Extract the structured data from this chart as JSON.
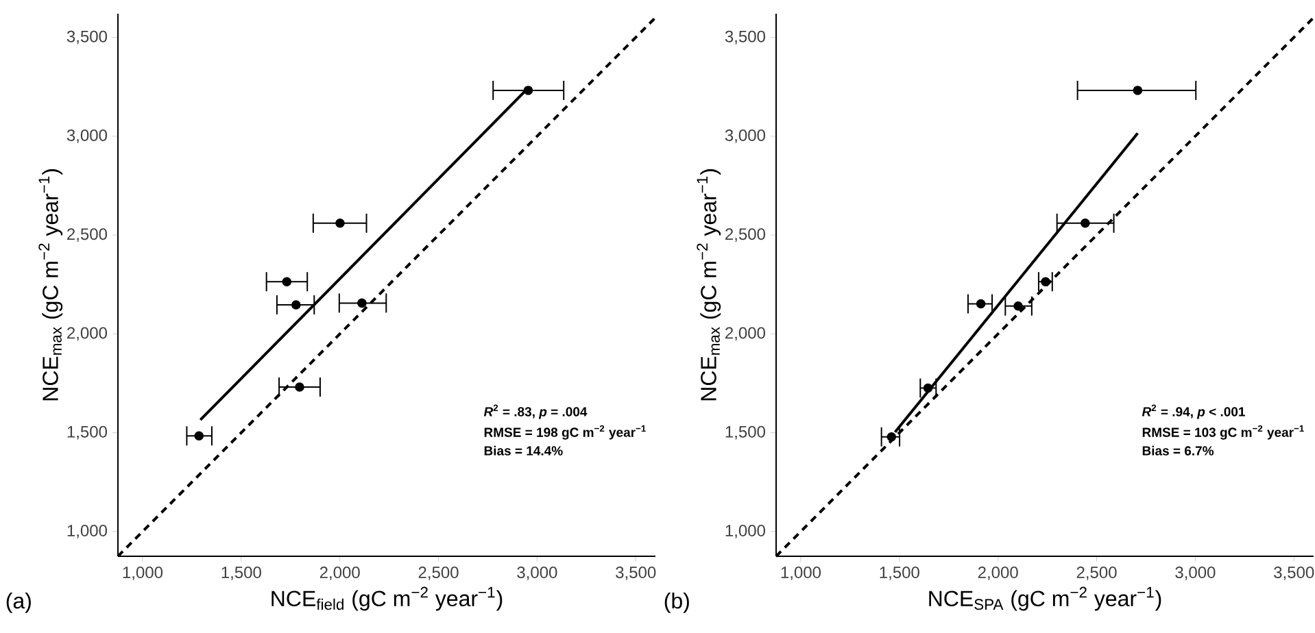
{
  "chart_data": [
    {
      "type": "scatter",
      "title": "(a)",
      "xlabel": "NCE$_{field}$ (gC m$^{−2}$ year$^{−1}$)",
      "ylabel": "NCE$_{max}$ (gC m$^{−2}$ year$^{−1}$)",
      "xlim": [
        875,
        3600
      ],
      "ylim": [
        875,
        3620
      ],
      "xticks": [
        {
          "value": 1000,
          "label": "1,000"
        },
        {
          "value": 1500,
          "label": "1,500"
        },
        {
          "value": 2000,
          "label": "2,000"
        },
        {
          "value": 2500,
          "label": "2,500"
        },
        {
          "value": 3000,
          "label": "3,000"
        },
        {
          "value": 3500,
          "label": "3,500"
        }
      ],
      "yticks": [
        {
          "value": 1000,
          "label": "1,000"
        },
        {
          "value": 1500,
          "label": "1,500"
        },
        {
          "value": 2000,
          "label": "2,000"
        },
        {
          "value": 2500,
          "label": "2,500"
        },
        {
          "value": 3000,
          "label": "3,000"
        },
        {
          "value": 3500,
          "label": "3,500"
        }
      ],
      "annotations": [
        "*R*$^{2}$ = .83, *p* = .004",
        "RMSE = 198 gC m$^{−2}$ year$^{−1}$",
        "Bias = 14.4%"
      ],
      "series": [
        {
          "color": "#000000",
          "marker": "circle",
          "x": [
            2955,
            2001,
            1731,
            1778,
            2112,
            1796,
            1286
          ],
          "values": [
            3232,
            2560,
            2264,
            2147,
            2156,
            1731,
            1484
          ],
          "xerrors": [
            [
              2777,
              3135
            ],
            [
              1865,
              2135
            ],
            [
              1628,
              1835
            ],
            [
              1681,
              1870
            ],
            [
              1997,
              2235
            ],
            [
              1692,
              1900
            ],
            [
              1224,
              1351
            ]
          ]
        },
        {
          "type": "line",
          "color": "#000000",
          "marker": "none",
          "line_style": "solid",
          "x": [
            1293,
            2943
          ],
          "values": [
            1565,
            3232
          ]
        },
        {
          "type": "line",
          "color": "#000000",
          "marker": "none",
          "line_style": "dashed",
          "x": [
            875,
            3600
          ],
          "values": [
            875,
            3600
          ]
        }
      ]
    },
    {
      "type": "scatter",
      "title": "(b)",
      "xlabel": "NCE$_{SPA}$ (gC m$^{−2}$ year$^{−1}$)",
      "ylabel": "NCE$_{max}$ (gC m$^{−2}$ year$^{−1}$)",
      "xlim": [
        875,
        3600
      ],
      "ylim": [
        875,
        3620
      ],
      "xticks": [
        {
          "value": 1000,
          "label": "1,000"
        },
        {
          "value": 1500,
          "label": "1,500"
        },
        {
          "value": 2000,
          "label": "2,000"
        },
        {
          "value": 2500,
          "label": "2,500"
        },
        {
          "value": 3000,
          "label": "3,000"
        },
        {
          "value": 3500,
          "label": "3,500"
        }
      ],
      "yticks": [
        {
          "value": 1000,
          "label": "1,000"
        },
        {
          "value": 1500,
          "label": "1,500"
        },
        {
          "value": 2000,
          "label": "2,000"
        },
        {
          "value": 2500,
          "label": "2,500"
        },
        {
          "value": 3000,
          "label": "3,000"
        },
        {
          "value": 3500,
          "label": "3,500"
        }
      ],
      "annotations": [
        "*R*$^{2}$ = .94, *p* < .001",
        "RMSE = 103 gC m$^{−2}$ year$^{−1}$",
        "Bias = 6.7%"
      ],
      "series": [
        {
          "color": "#000000",
          "marker": "circle",
          "x": [
            2708,
            2442,
            2241,
            1913,
            2102,
            1645,
            1460
          ],
          "values": [
            3232,
            2560,
            2264,
            2152,
            2141,
            1726,
            1479
          ],
          "xerrors": [
            [
              2403,
              3003
            ],
            [
              2299,
              2587
            ],
            [
              2206,
              2275
            ],
            [
              1848,
              1970
            ],
            [
              2037,
              2171
            ],
            [
              1606,
              1686
            ],
            [
              1409,
              1501
            ]
          ]
        },
        {
          "type": "line",
          "color": "#000000",
          "marker": "none",
          "line_style": "solid",
          "x": [
            1478,
            2708
          ],
          "values": [
            1503,
            3015
          ]
        },
        {
          "type": "line",
          "color": "#000000",
          "marker": "none",
          "line_style": "dashed",
          "x": [
            875,
            3600
          ],
          "values": [
            875,
            3600
          ]
        }
      ]
    }
  ]
}
